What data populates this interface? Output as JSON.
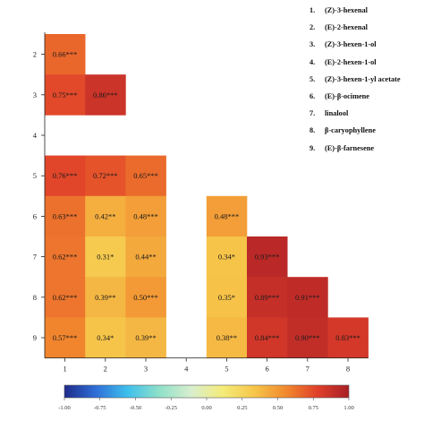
{
  "legend": {
    "items": [
      {
        "num": "1.",
        "label": "(Z)-3-hexenal"
      },
      {
        "num": "2.",
        "label": "(E)-2-hexenal"
      },
      {
        "num": "3.",
        "label": "(Z)-3-hexen-1-ol"
      },
      {
        "num": "4.",
        "label": "(E)-2-hexen-1-ol"
      },
      {
        "num": "5.",
        "label": "(Z)-3-hexen-1-yl acetate"
      },
      {
        "num": "6.",
        "label": "(E)-β-ocimene"
      },
      {
        "num": "7.",
        "label": "linalool"
      },
      {
        "num": "8.",
        "label": "β-caryophyllene"
      },
      {
        "num": "9.",
        "label": "(E)-β-farnesene"
      }
    ]
  },
  "chart_data": {
    "type": "heatmap",
    "x_categories": [
      "1",
      "2",
      "3",
      "4",
      "5",
      "6",
      "7",
      "8"
    ],
    "y_categories": [
      "2",
      "3",
      "4",
      "5",
      "6",
      "7",
      "8",
      "9"
    ],
    "cells": [
      {
        "x": "1",
        "y": "2",
        "value": 0.66,
        "label": "0.66***"
      },
      {
        "x": "1",
        "y": "3",
        "value": 0.75,
        "label": "0.75***"
      },
      {
        "x": "2",
        "y": "3",
        "value": 0.86,
        "label": "0.86***"
      },
      {
        "x": "1",
        "y": "5",
        "value": 0.76,
        "label": "0.76***"
      },
      {
        "x": "2",
        "y": "5",
        "value": 0.72,
        "label": "0.72***"
      },
      {
        "x": "3",
        "y": "5",
        "value": 0.65,
        "label": "0.65***"
      },
      {
        "x": "1",
        "y": "6",
        "value": 0.63,
        "label": "0.63***"
      },
      {
        "x": "2",
        "y": "6",
        "value": 0.42,
        "label": "0.42**"
      },
      {
        "x": "3",
        "y": "6",
        "value": 0.48,
        "label": "0.48***"
      },
      {
        "x": "5",
        "y": "6",
        "value": 0.48,
        "label": "0.48***"
      },
      {
        "x": "1",
        "y": "7",
        "value": 0.62,
        "label": "0.62***"
      },
      {
        "x": "2",
        "y": "7",
        "value": 0.31,
        "label": "0.31*"
      },
      {
        "x": "3",
        "y": "7",
        "value": 0.44,
        "label": "0.44**"
      },
      {
        "x": "5",
        "y": "7",
        "value": 0.34,
        "label": "0.34*"
      },
      {
        "x": "6",
        "y": "7",
        "value": 0.93,
        "label": "0.93***"
      },
      {
        "x": "1",
        "y": "8",
        "value": 0.62,
        "label": "0.62***"
      },
      {
        "x": "2",
        "y": "8",
        "value": 0.39,
        "label": "0.39**"
      },
      {
        "x": "3",
        "y": "8",
        "value": 0.5,
        "label": "0.50***"
      },
      {
        "x": "5",
        "y": "8",
        "value": 0.35,
        "label": "0.35*"
      },
      {
        "x": "6",
        "y": "8",
        "value": 0.89,
        "label": "0.89***"
      },
      {
        "x": "7",
        "y": "8",
        "value": 0.91,
        "label": "0.91***"
      },
      {
        "x": "1",
        "y": "9",
        "value": 0.57,
        "label": "0.57***"
      },
      {
        "x": "2",
        "y": "9",
        "value": 0.34,
        "label": "0.34*"
      },
      {
        "x": "3",
        "y": "9",
        "value": 0.39,
        "label": "0.39**"
      },
      {
        "x": "5",
        "y": "9",
        "value": 0.38,
        "label": "0.38**"
      },
      {
        "x": "6",
        "y": "9",
        "value": 0.84,
        "label": "0.84***"
      },
      {
        "x": "7",
        "y": "9",
        "value": 0.9,
        "label": "0.90***"
      },
      {
        "x": "8",
        "y": "9",
        "value": 0.83,
        "label": "0.83***"
      }
    ],
    "colorbar": {
      "range": [
        -1.0,
        1.0
      ],
      "ticks": [
        "-1.00",
        "-0.75",
        "-0.50",
        "-0.25",
        "0.00",
        "0.25",
        "0.50",
        "0.75",
        "1.00"
      ],
      "colors": [
        "#1f2a8a",
        "#2f6fd8",
        "#3ec0ec",
        "#8fe0c8",
        "#d8eecf",
        "#f4ec7a",
        "#f6c64a",
        "#f28a2e",
        "#e0402a",
        "#a81f26"
      ]
    }
  }
}
